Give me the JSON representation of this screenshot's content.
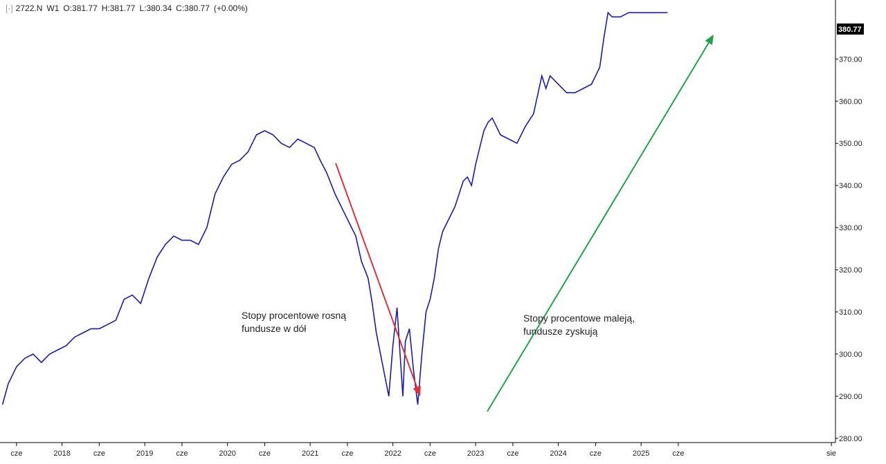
{
  "header": {
    "bracket": "[-]",
    "symbol": "2722.N",
    "interval": "W1",
    "open": "O:381.77",
    "high": "H:381.77",
    "low": "L:380.34",
    "close": "C:380.77",
    "change": "(+0.00%)"
  },
  "annotations": {
    "falling_line1": "Stopy procentowe rosną",
    "falling_line2": "fundusze w dół",
    "rising_line1": "Stopy procentowe maleją,",
    "rising_line2": "fundusze zyskują"
  },
  "colors": {
    "price": "#1a1aa8",
    "arrow_down": "#e0303a",
    "arrow_up": "#22a24a",
    "axis": "#000000"
  },
  "chart_data": {
    "type": "line",
    "title": "",
    "xlabel": "",
    "ylabel": "",
    "ylim": [
      279,
      384
    ],
    "xlim": [
      2017.25,
      2027.35
    ],
    "y_ticks": [
      "370.00",
      "360.00",
      "350.00",
      "340.00",
      "330.00",
      "320.00",
      "310.00",
      "300.00",
      "290.00",
      "280.00"
    ],
    "y_tick_values": [
      370,
      360,
      350,
      340,
      330,
      320,
      310,
      300,
      290,
      280
    ],
    "x_ticks": [
      {
        "label": "cze",
        "x": 2017.45
      },
      {
        "label": "2018",
        "x": 2018.0
      },
      {
        "label": "cze",
        "x": 2018.45
      },
      {
        "label": "2019",
        "x": 2019.0
      },
      {
        "label": "cze",
        "x": 2019.45
      },
      {
        "label": "2020",
        "x": 2020.0
      },
      {
        "label": "cze",
        "x": 2020.45
      },
      {
        "label": "2021",
        "x": 2021.0
      },
      {
        "label": "cze",
        "x": 2021.45
      },
      {
        "label": "2022",
        "x": 2022.0
      },
      {
        "label": "cze",
        "x": 2022.45
      },
      {
        "label": "2023",
        "x": 2023.0
      },
      {
        "label": "cze",
        "x": 2023.45
      },
      {
        "label": "2024",
        "x": 2024.0
      },
      {
        "label": "cze",
        "x": 2024.45
      },
      {
        "label": "2025",
        "x": 2025.0
      },
      {
        "label": "cze",
        "x": 2025.45
      },
      {
        "label": "sie",
        "x": 2027.3
      }
    ],
    "last_value": "380.77",
    "series": [
      {
        "x": [
          2017.28,
          2017.35,
          2017.45,
          2017.55,
          2017.65,
          2017.75,
          2017.85,
          2017.95,
          2018.05,
          2018.15,
          2018.25,
          2018.35,
          2018.45,
          2018.55,
          2018.65,
          2018.75,
          2018.85,
          2018.95,
          2019.05,
          2019.15,
          2019.25,
          2019.35,
          2019.45,
          2019.55,
          2019.65,
          2019.75,
          2019.85,
          2019.95,
          2020.05,
          2020.15,
          2020.2,
          2020.25,
          2020.3,
          2020.35,
          2020.45,
          2020.55,
          2020.65,
          2020.75,
          2020.85,
          2020.95,
          2021.05,
          2021.12,
          2021.2,
          2021.3,
          2021.4,
          2021.5,
          2021.55,
          2021.62,
          2021.7,
          2021.75,
          2021.8,
          2021.85,
          2021.9,
          2021.95,
          2022.0,
          2022.05,
          2022.12,
          2022.15,
          2022.2,
          2022.25,
          2022.3,
          2022.35,
          2022.4,
          2022.45,
          2022.5,
          2022.55,
          2022.6,
          2022.65,
          2022.7,
          2022.75,
          2022.8,
          2022.85,
          2022.9,
          2022.95,
          2023.0,
          2023.05,
          2023.1,
          2023.15,
          2023.2,
          2023.3,
          2023.4,
          2023.5,
          2023.6,
          2023.7,
          2023.8,
          2023.85,
          2023.9,
          2024.0,
          2024.1,
          2024.2,
          2024.3,
          2024.4,
          2024.5,
          2024.55,
          2024.6,
          2024.65,
          2024.75,
          2024.85,
          2024.95,
          2025.05,
          2025.15,
          2025.2,
          2025.25,
          2025.28,
          2025.32
        ],
        "values": [
          288,
          293,
          297,
          299,
          300,
          298,
          300,
          301,
          302,
          304,
          305,
          306,
          306,
          307,
          308,
          313,
          314,
          312,
          318,
          323,
          326,
          328,
          327,
          327,
          326,
          330,
          338,
          342,
          345,
          346,
          347,
          348,
          350,
          352,
          353,
          352,
          350,
          349,
          351,
          350,
          349,
          346,
          343,
          338,
          334,
          330,
          328,
          322,
          318,
          312,
          305,
          300,
          295,
          290,
          302,
          311,
          290,
          303,
          306,
          296,
          288,
          300,
          310,
          313,
          318,
          325,
          329,
          331,
          333,
          335,
          338,
          341,
          342,
          340,
          345,
          349,
          353,
          355,
          356,
          352,
          351,
          350,
          354,
          357,
          366,
          363,
          366,
          364,
          362,
          362,
          363,
          364,
          368,
          375,
          381,
          380,
          380,
          381,
          381,
          381,
          381,
          381,
          381,
          381,
          381
        ]
      }
    ]
  }
}
